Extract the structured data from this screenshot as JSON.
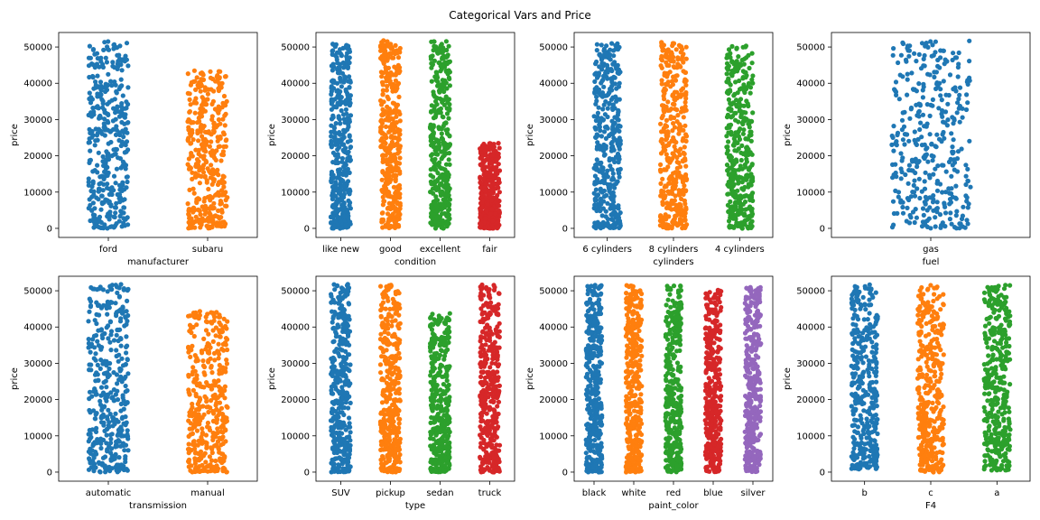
{
  "figure": {
    "title": "Categorical Vars and Price"
  },
  "palette": [
    "#1f77b4",
    "#ff7f0e",
    "#2ca02c",
    "#d62728",
    "#9467bd"
  ],
  "chart_data": [
    {
      "type": "scatter",
      "subtype": "strip",
      "xlabel": "manufacturer",
      "ylabel": "price",
      "ylim": [
        -2500,
        54000
      ],
      "yticks": [
        0,
        10000,
        20000,
        30000,
        40000,
        50000
      ],
      "categories": [
        "ford",
        "subaru"
      ],
      "ranges": [
        [
          0,
          51800
        ],
        [
          0,
          43500
        ]
      ]
    },
    {
      "type": "scatter",
      "subtype": "strip",
      "xlabel": "condition",
      "ylabel": "price",
      "ylim": [
        -2500,
        54000
      ],
      "yticks": [
        0,
        10000,
        20000,
        30000,
        40000,
        50000
      ],
      "categories": [
        "like new",
        "good",
        "excellent",
        "fair"
      ],
      "ranges": [
        [
          0,
          51500
        ],
        [
          0,
          51800
        ],
        [
          0,
          51700
        ],
        [
          0,
          23500
        ]
      ]
    },
    {
      "type": "scatter",
      "subtype": "strip",
      "xlabel": "cylinders",
      "ylabel": "price",
      "ylim": [
        -2500,
        54000
      ],
      "yticks": [
        0,
        10000,
        20000,
        30000,
        40000,
        50000
      ],
      "categories": [
        "6 cylinders",
        "8 cylinders",
        "4 cylinders"
      ],
      "ranges": [
        [
          0,
          51700
        ],
        [
          0,
          51600
        ],
        [
          0,
          51000
        ]
      ]
    },
    {
      "type": "scatter",
      "subtype": "strip",
      "xlabel": "fuel",
      "ylabel": "price",
      "ylim": [
        -2500,
        54000
      ],
      "yticks": [
        0,
        10000,
        20000,
        30000,
        40000,
        50000
      ],
      "categories": [
        "gas"
      ],
      "ranges": [
        [
          0,
          51800
        ]
      ]
    },
    {
      "type": "scatter",
      "subtype": "strip",
      "xlabel": "transmission",
      "ylabel": "price",
      "ylim": [
        -2500,
        54000
      ],
      "yticks": [
        0,
        10000,
        20000,
        30000,
        40000,
        50000
      ],
      "categories": [
        "automatic",
        "manual"
      ],
      "ranges": [
        [
          0,
          51800
        ],
        [
          0,
          44500
        ]
      ]
    },
    {
      "type": "scatter",
      "subtype": "strip",
      "xlabel": "type",
      "ylabel": "price",
      "ylim": [
        -2500,
        54000
      ],
      "yticks": [
        0,
        10000,
        20000,
        30000,
        40000,
        50000
      ],
      "categories": [
        "SUV",
        "pickup",
        "sedan",
        "truck"
      ],
      "ranges": [
        [
          0,
          51800
        ],
        [
          0,
          51700
        ],
        [
          0,
          43800
        ],
        [
          0,
          51800
        ]
      ]
    },
    {
      "type": "scatter",
      "subtype": "strip",
      "xlabel": "paint_color",
      "ylabel": "price",
      "ylim": [
        -2500,
        54000
      ],
      "yticks": [
        0,
        10000,
        20000,
        30000,
        40000,
        50000
      ],
      "categories": [
        "black",
        "white",
        "red",
        "blue",
        "silver"
      ],
      "ranges": [
        [
          0,
          51800
        ],
        [
          0,
          51700
        ],
        [
          0,
          51400
        ],
        [
          0,
          50200
        ],
        [
          0,
          51000
        ]
      ]
    },
    {
      "type": "scatter",
      "subtype": "strip",
      "xlabel": "F4",
      "ylabel": "price",
      "ylim": [
        -2500,
        54000
      ],
      "yticks": [
        0,
        10000,
        20000,
        30000,
        40000,
        50000
      ],
      "categories": [
        "b",
        "c",
        "a"
      ],
      "ranges": [
        [
          800,
          51800
        ],
        [
          0,
          51800
        ],
        [
          500,
          51600
        ]
      ]
    }
  ]
}
